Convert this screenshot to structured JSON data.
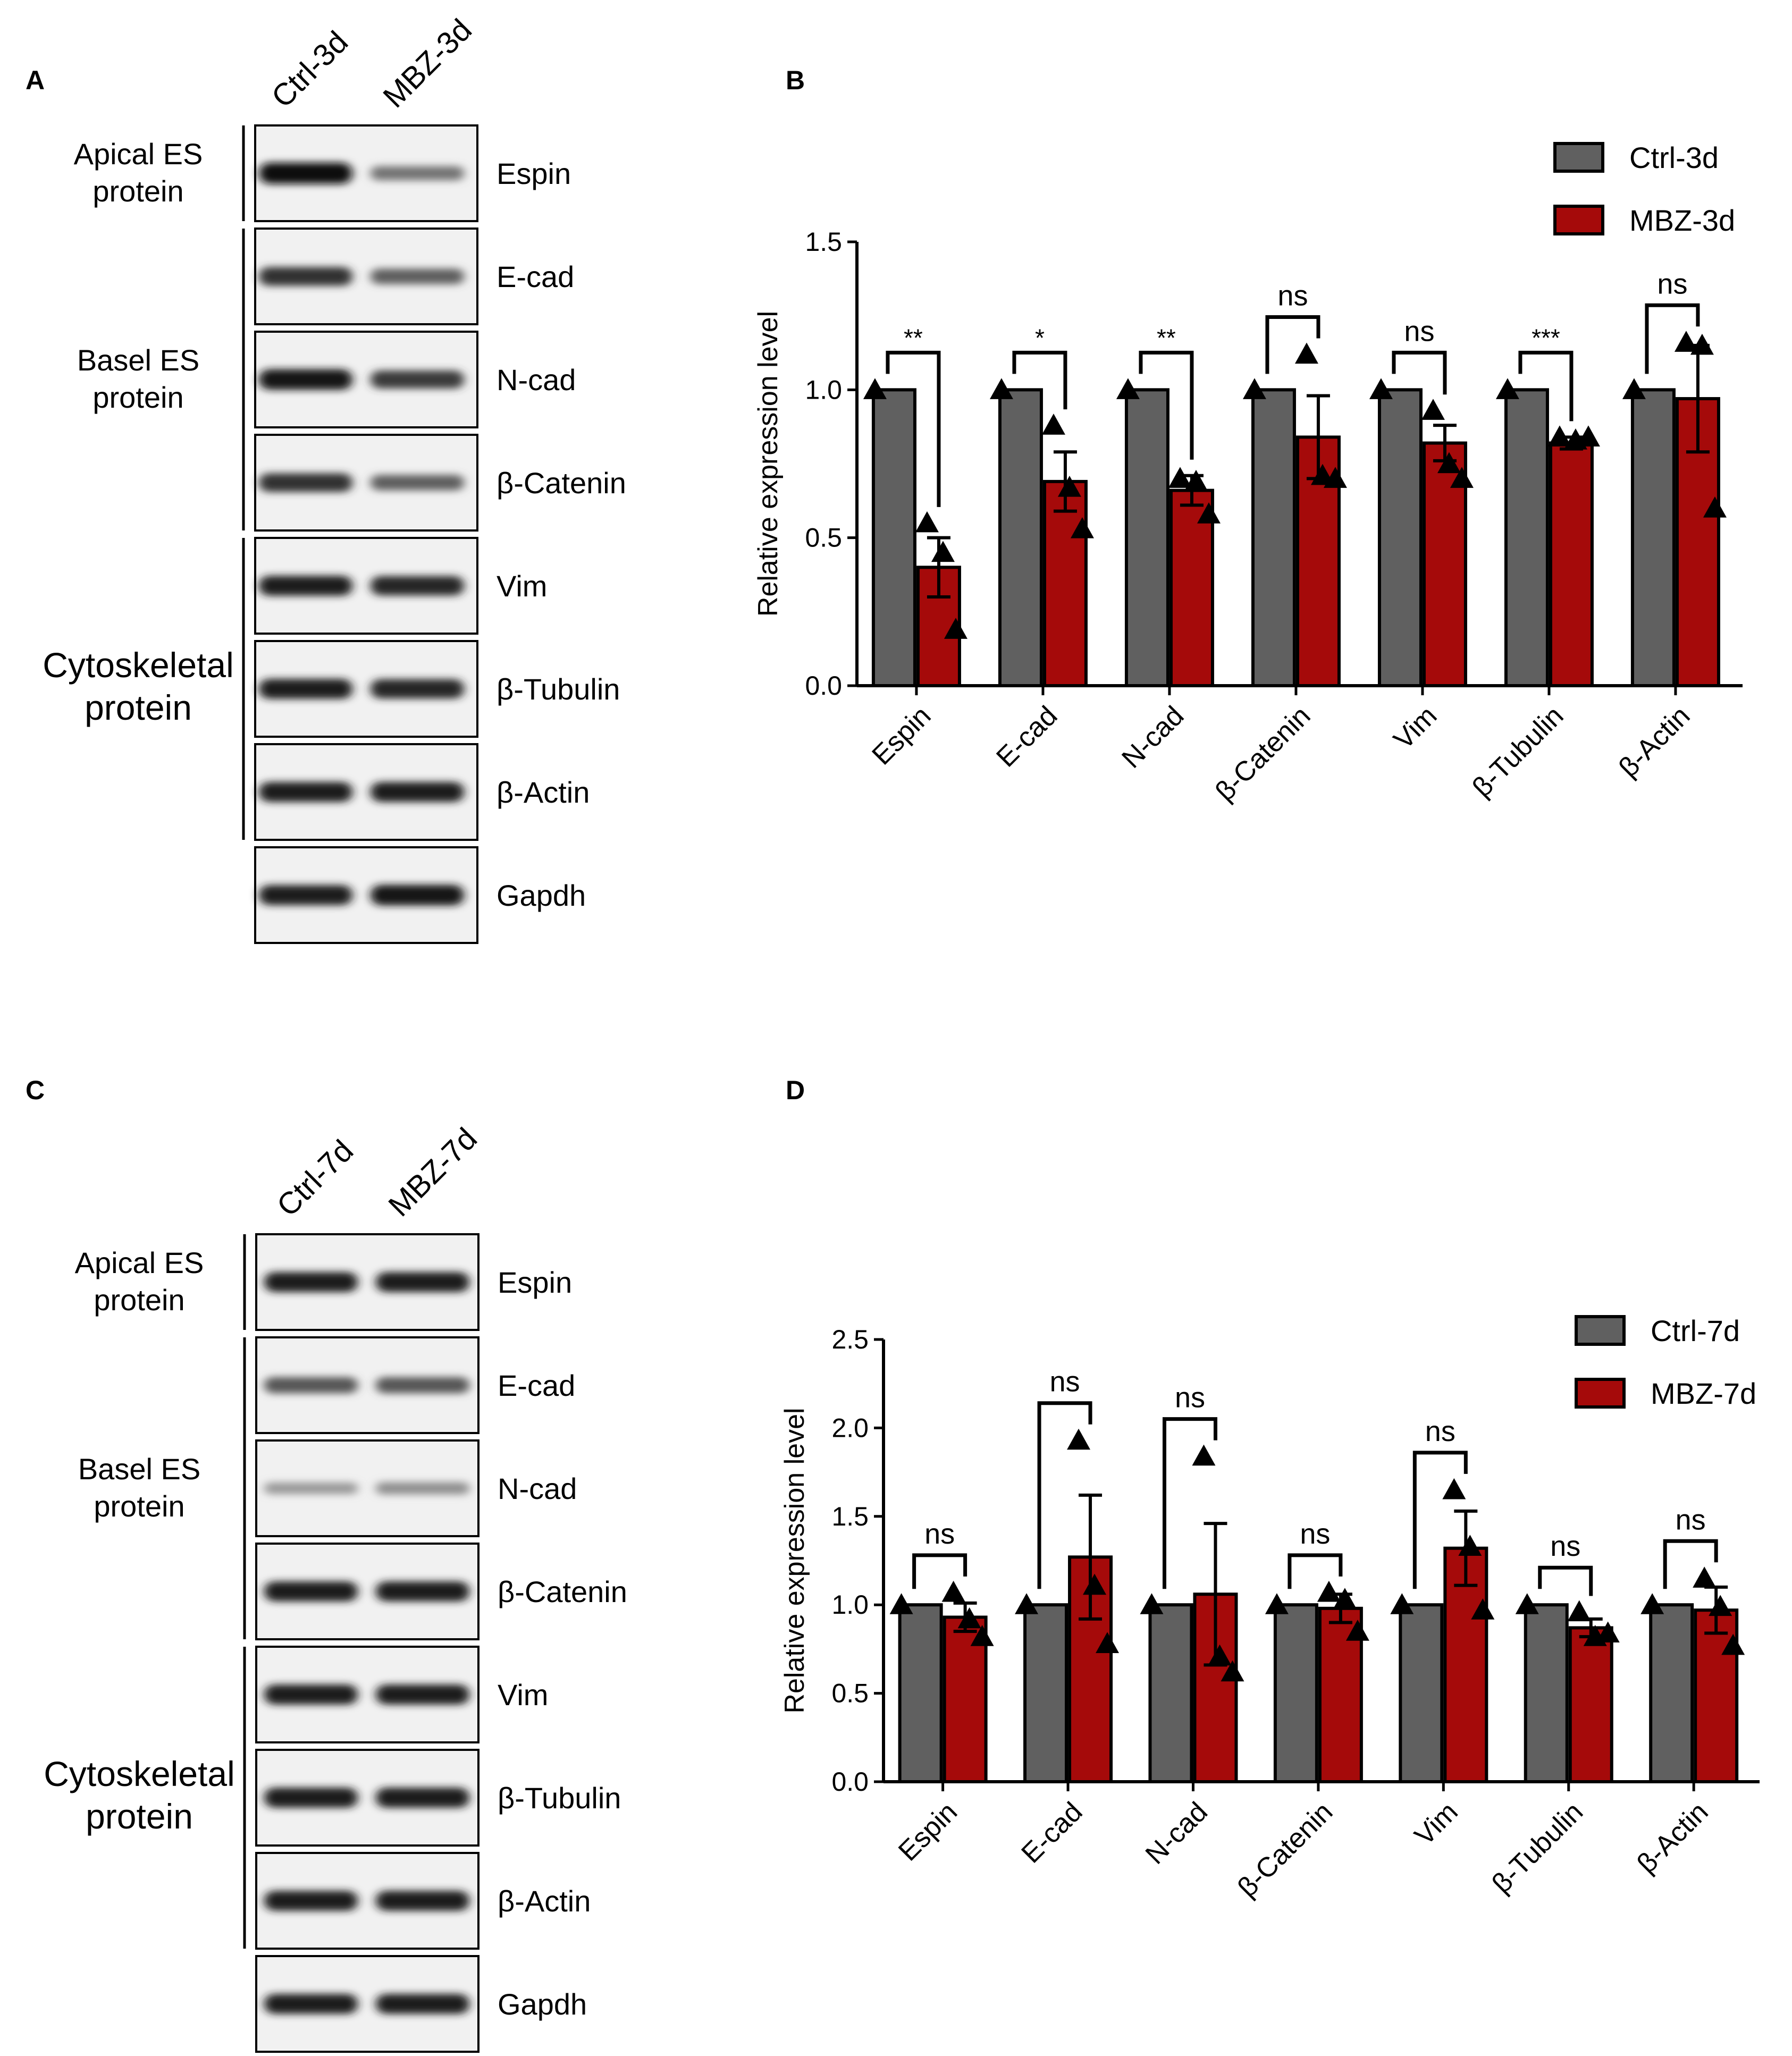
{
  "panels": {
    "A": "A",
    "B": "B",
    "C": "C",
    "D": "D"
  },
  "blot_A": {
    "lanes": [
      "Ctrl-3d",
      "MBZ-3d"
    ],
    "groups": [
      {
        "lines": [
          "Apical ES",
          "protein"
        ],
        "rows": [
          0,
          0
        ]
      },
      {
        "lines": [
          "Basel ES",
          "protein"
        ],
        "rows": [
          1,
          3
        ]
      },
      {
        "lines": [
          "Cytoskeletal",
          "protein"
        ],
        "rows": [
          4,
          6
        ]
      }
    ],
    "proteins": [
      "Espin",
      "E-cad",
      "N-cad",
      "β-Catenin",
      "Vim",
      "β-Tubulin",
      "β-Actin",
      "Gapdh"
    ],
    "band_intensity": [
      [
        1.0,
        0.45
      ],
      [
        0.8,
        0.55
      ],
      [
        0.95,
        0.75
      ],
      [
        0.8,
        0.55
      ],
      [
        0.9,
        0.85
      ],
      [
        0.9,
        0.85
      ],
      [
        0.9,
        0.9
      ],
      [
        0.9,
        0.95
      ]
    ]
  },
  "blot_C": {
    "lanes": [
      "Ctrl-7d",
      "MBZ-7d"
    ],
    "groups": [
      {
        "lines": [
          "Apical ES",
          "protein"
        ],
        "rows": [
          0,
          0
        ]
      },
      {
        "lines": [
          "Basel ES",
          "protein"
        ],
        "rows": [
          1,
          3
        ]
      },
      {
        "lines": [
          "Cytoskeletal",
          "protein"
        ],
        "rows": [
          4,
          6
        ]
      }
    ],
    "proteins": [
      "Espin",
      "E-cad",
      "N-cad",
      "β-Catenin",
      "Vim",
      "β-Tubulin",
      "β-Actin",
      "Gapdh"
    ],
    "band_intensity": [
      [
        0.9,
        0.9
      ],
      [
        0.6,
        0.6
      ],
      [
        0.25,
        0.3
      ],
      [
        0.9,
        0.9
      ],
      [
        0.9,
        0.9
      ],
      [
        0.9,
        0.9
      ],
      [
        0.9,
        0.9
      ],
      [
        0.9,
        0.9
      ]
    ]
  },
  "colors": {
    "ctrl": "#606060",
    "mbz": "#a50a0a",
    "black": "#000000"
  },
  "chart_data": [
    {
      "type": "bar",
      "panel": "B",
      "categories": [
        "Espin",
        "E-cad",
        "N-cad",
        "β-Catenin",
        "Vim",
        "β-Tubulin",
        "β-Actin"
      ],
      "ylabel": "Relative expression level",
      "ylim": [
        0,
        1.5
      ],
      "yticks": [
        "0.0",
        "0.5",
        "1.0",
        "1.5"
      ],
      "legend_position": "top-right",
      "series": [
        {
          "name": "Ctrl-3d",
          "values": [
            1.0,
            1.0,
            1.0,
            1.0,
            1.0,
            1.0,
            1.0
          ],
          "errors": [
            0,
            0,
            0,
            0,
            0,
            0,
            0
          ],
          "points": [
            [
              1.0
            ],
            [
              1.0
            ],
            [
              1.0
            ],
            [
              1.0
            ],
            [
              1.0
            ],
            [
              1.0
            ],
            [
              1.0
            ]
          ]
        },
        {
          "name": "MBZ-3d",
          "values": [
            0.4,
            0.69,
            0.66,
            0.84,
            0.82,
            0.82,
            0.97
          ],
          "errors": [
            0.1,
            0.1,
            0.05,
            0.14,
            0.06,
            0.02,
            0.18
          ],
          "points": [
            [
              0.55,
              0.45,
              0.19
            ],
            [
              0.88,
              0.67,
              0.53
            ],
            [
              0.7,
              0.69,
              0.58
            ],
            [
              1.12,
              0.71,
              0.7
            ],
            [
              0.93,
              0.75,
              0.7
            ],
            [
              0.84,
              0.83,
              0.84
            ],
            [
              1.16,
              1.15,
              0.6
            ]
          ]
        }
      ],
      "significance": [
        "**",
        "*",
        "**",
        "ns",
        "ns",
        "***",
        "ns"
      ]
    },
    {
      "type": "bar",
      "panel": "D",
      "categories": [
        "Espin",
        "E-cad",
        "N-cad",
        "β-Catenin",
        "Vim",
        "β-Tubulin",
        "β-Actin"
      ],
      "ylabel": "Relative expression level",
      "ylim": [
        0,
        2.5
      ],
      "yticks": [
        "0.0",
        "0.5",
        "1.0",
        "1.5",
        "2.0",
        "2.5"
      ],
      "legend_position": "top-right",
      "series": [
        {
          "name": "Ctrl-7d",
          "values": [
            1.0,
            1.0,
            1.0,
            1.0,
            1.0,
            1.0,
            1.0
          ],
          "errors": [
            0,
            0,
            0,
            0,
            0,
            0,
            0
          ],
          "points": [
            [
              1.0
            ],
            [
              1.0
            ],
            [
              1.0
            ],
            [
              1.0
            ],
            [
              1.0
            ],
            [
              1.0
            ],
            [
              1.0
            ]
          ]
        },
        {
          "name": "MBZ-7d",
          "values": [
            0.93,
            1.27,
            1.06,
            0.98,
            1.32,
            0.87,
            0.97
          ],
          "errors": [
            0.08,
            0.35,
            0.4,
            0.08,
            0.21,
            0.05,
            0.13
          ],
          "points": [
            [
              1.07,
              0.92,
              0.82
            ],
            [
              1.93,
              1.11,
              0.78
            ],
            [
              1.84,
              0.71,
              0.62
            ],
            [
              1.07,
              1.03,
              0.85
            ],
            [
              1.65,
              1.33,
              0.97
            ],
            [
              0.96,
              0.82,
              0.84
            ],
            [
              1.15,
              0.99,
              0.77
            ]
          ]
        }
      ],
      "significance": [
        "ns",
        "ns",
        "ns",
        "ns",
        "ns",
        "ns",
        "ns"
      ]
    }
  ]
}
